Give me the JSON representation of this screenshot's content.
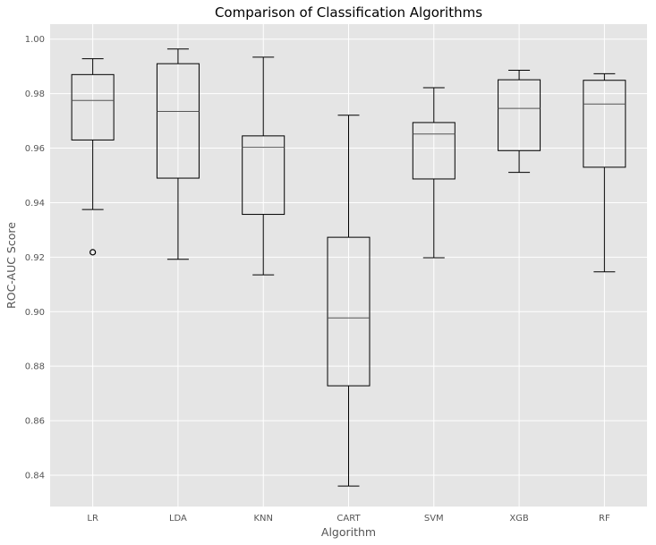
{
  "chart_data": {
    "type": "box",
    "title": "Comparison of Classification Algorithms",
    "xlabel": "Algorithm",
    "ylabel": "ROC-AUC Score",
    "ylim": [
      0.8285,
      1.0055
    ],
    "yticks": [
      "0.84",
      "0.86",
      "0.88",
      "0.90",
      "0.92",
      "0.94",
      "0.96",
      "0.98",
      "1.00"
    ],
    "grid": true,
    "colors": {
      "background": "#e5e5e5",
      "grid": "#ffffff",
      "box": "#000000",
      "median": "#555555",
      "text": "#555555"
    },
    "categories": [
      "LR",
      "LDA",
      "KNN",
      "CART",
      "SVM",
      "XGB",
      "RF"
    ],
    "boxes": [
      {
        "label": "LR",
        "whisker_low": 0.9375,
        "q1": 0.963,
        "median": 0.9775,
        "q3": 0.987,
        "whisker_high": 0.9928,
        "outliers": [
          0.9218
        ]
      },
      {
        "label": "LDA",
        "whisker_low": 0.9192,
        "q1": 0.949,
        "median": 0.9735,
        "q3": 0.991,
        "whisker_high": 0.9964,
        "outliers": []
      },
      {
        "label": "KNN",
        "whisker_low": 0.9135,
        "q1": 0.9357,
        "median": 0.9603,
        "q3": 0.9645,
        "whisker_high": 0.9934,
        "outliers": []
      },
      {
        "label": "CART",
        "whisker_low": 0.836,
        "q1": 0.8728,
        "median": 0.8977,
        "q3": 0.9273,
        "whisker_high": 0.9721,
        "outliers": []
      },
      {
        "label": "SVM",
        "whisker_low": 0.9198,
        "q1": 0.9487,
        "median": 0.9652,
        "q3": 0.9694,
        "whisker_high": 0.9822,
        "outliers": []
      },
      {
        "label": "XGB",
        "whisker_low": 0.9511,
        "q1": 0.9591,
        "median": 0.9746,
        "q3": 0.9851,
        "whisker_high": 0.9886,
        "outliers": []
      },
      {
        "label": "RF",
        "whisker_low": 0.9146,
        "q1": 0.953,
        "median": 0.9762,
        "q3": 0.9849,
        "whisker_high": 0.9873,
        "outliers": []
      }
    ]
  }
}
